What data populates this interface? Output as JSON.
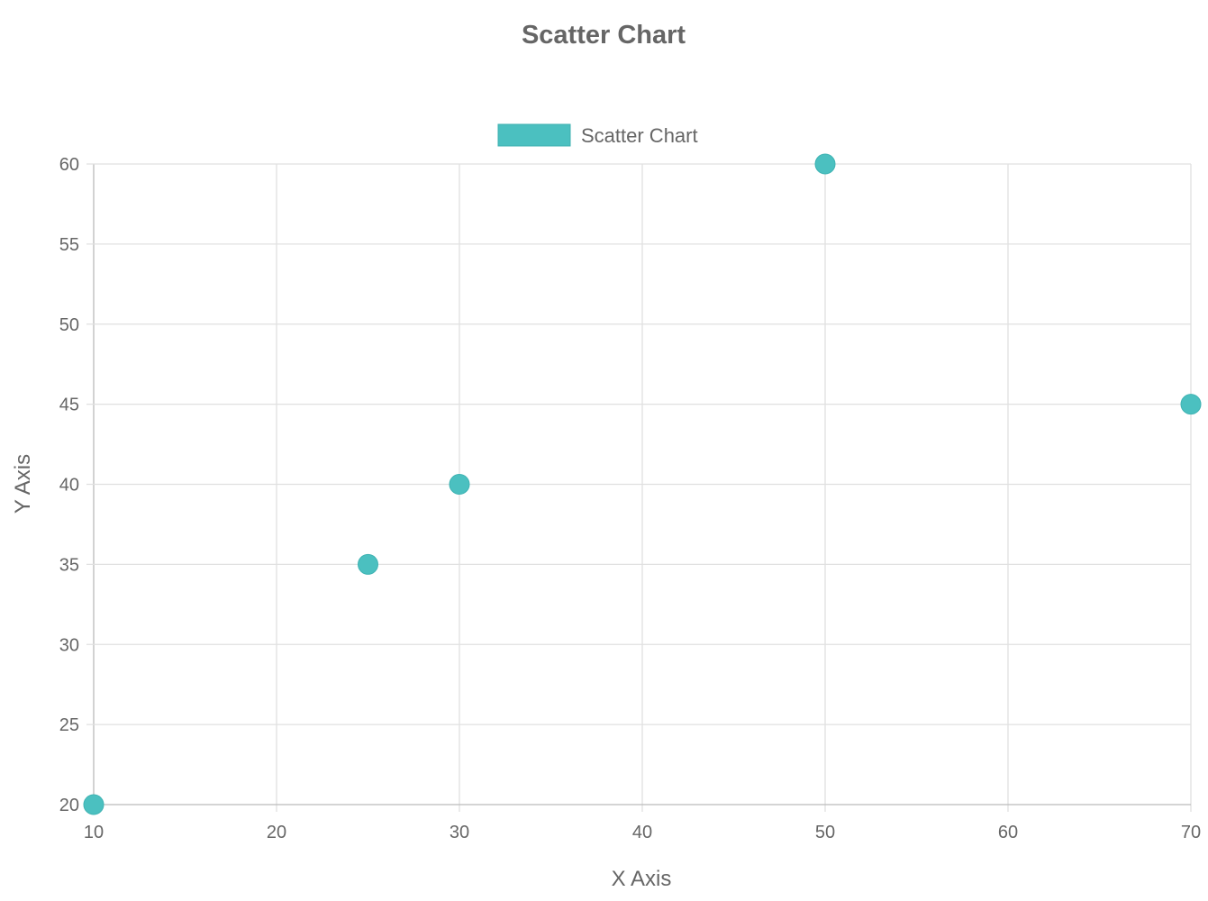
{
  "chart_data": {
    "type": "scatter",
    "title": "Scatter Chart",
    "xlabel": "X Axis",
    "ylabel": "Y Axis",
    "xlim": [
      10,
      70
    ],
    "ylim": [
      20,
      60
    ],
    "xticks": [
      10,
      20,
      30,
      40,
      50,
      60,
      70
    ],
    "yticks": [
      20,
      25,
      30,
      35,
      40,
      45,
      50,
      55,
      60
    ],
    "grid": true,
    "legend_position": "top",
    "series": [
      {
        "name": "Scatter Chart",
        "color": "#4bc0c0",
        "points": [
          {
            "x": 10,
            "y": 20
          },
          {
            "x": 25,
            "y": 35
          },
          {
            "x": 30,
            "y": 40
          },
          {
            "x": 50,
            "y": 60
          },
          {
            "x": 70,
            "y": 45
          }
        ]
      }
    ]
  }
}
